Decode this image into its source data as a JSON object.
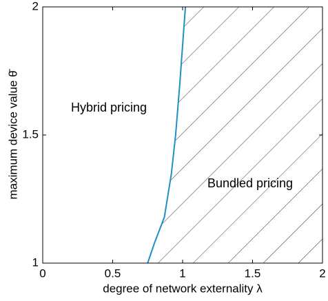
{
  "chart_data": {
    "type": "line",
    "xlabel": "degree of network externality λ",
    "ylabel": "maximum device value θ̄",
    "annotations": [
      "Hybrid pricing",
      "Bundled pricing"
    ],
    "x": [
      0.75,
      0.8,
      0.87,
      0.92,
      0.95,
      0.98,
      1.0,
      1.02
    ],
    "series": [
      {
        "color": "#1f8fc4",
        "values": [
          1,
          1.08,
          1.18,
          1.35,
          1.5,
          1.7,
          1.85,
          2
        ]
      }
    ],
    "xlim": [
      0,
      2
    ],
    "xticks": [
      0,
      0.5,
      1,
      1.5,
      2
    ],
    "ylim": [
      1,
      2
    ],
    "yticks": [
      1,
      1.5,
      2
    ],
    "hatch_right_of_curve": true
  }
}
